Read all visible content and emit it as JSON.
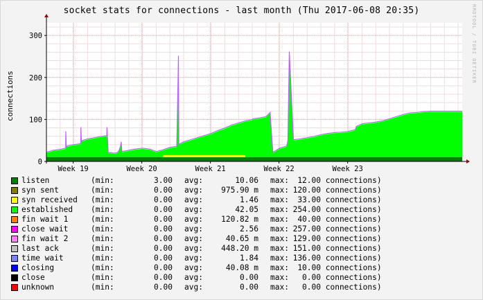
{
  "chart_data": {
    "type": "area",
    "title": "socket stats for connections - last month (Thu 2017-06-08 20:35)",
    "ylabel": "connections",
    "ylim": [
      0,
      330
    ],
    "yticks": [
      0,
      100,
      200,
      300
    ],
    "xticks": [
      "Week 19",
      "Week 20",
      "Week 21",
      "Week 22",
      "Week 23"
    ],
    "watermark": "RRDTOOL / TOBI OETIKER",
    "x_unit": "days since start of window",
    "x_range": [
      0,
      30.3
    ],
    "xtick_days": [
      1.95,
      6.95,
      11.95,
      16.95,
      21.95
    ],
    "series_est": {
      "listen_x": [
        0,
        30.3
      ],
      "listen_y": [
        10,
        10
      ],
      "established_x": [
        0,
        0.5,
        1.0,
        1.4,
        1.41,
        1.45,
        1.5,
        1.9,
        2.4,
        2.5,
        2.51,
        2.55,
        2.6,
        3.0,
        3.5,
        4.0,
        4.4,
        4.41,
        4.5,
        5.0,
        5.2,
        5.3,
        5.4,
        5.45,
        5.5,
        6.0,
        6.5,
        7.0,
        7.5,
        8.0,
        8.5,
        9.0,
        9.5,
        9.6,
        9.62,
        9.65,
        9.7,
        10.0,
        10.5,
        11.0,
        11.5,
        12.0,
        12.5,
        13.0,
        13.5,
        14.0,
        14.5,
        15.0,
        15.05,
        15.5,
        16.0,
        16.3,
        16.5,
        16.7,
        17.0,
        17.5,
        17.55,
        17.6,
        17.7,
        18.0,
        18.5,
        19.0,
        19.5,
        20.0,
        20.5,
        21.0,
        21.5,
        22.0,
        22.5,
        22.55,
        22.6,
        22.8,
        23.0,
        23.5,
        24.0,
        24.5,
        25.0,
        25.5,
        26.0,
        26.5,
        27.0,
        27.5,
        28.0,
        28.5,
        29.0,
        29.5,
        30.0,
        30.3
      ],
      "established_y": [
        10,
        15,
        17,
        20,
        60,
        22,
        25,
        28,
        30,
        32,
        70,
        35,
        38,
        42,
        45,
        48,
        50,
        70,
        10,
        8,
        10,
        15,
        25,
        35,
        12,
        15,
        18,
        20,
        18,
        12,
        16,
        22,
        24,
        200,
        240,
        26,
        30,
        35,
        40,
        45,
        50,
        55,
        62,
        68,
        75,
        80,
        85,
        88,
        90,
        92,
        95,
        105,
        10,
        14,
        20,
        25,
        30,
        40,
        250,
        40,
        42,
        45,
        48,
        52,
        55,
        57,
        58,
        60,
        64,
        68,
        72,
        75,
        78,
        80,
        82,
        85,
        90,
        95,
        100,
        104,
        105,
        107,
        108,
        108,
        108,
        108,
        108,
        108
      ],
      "synrecv_x": [
        8.5,
        14.5
      ],
      "synrecv_y": [
        5,
        5
      ]
    },
    "legend": [
      {
        "name": "listen",
        "color": "#008000",
        "min": "3.00",
        "avg": "10.06",
        "max": "12.00"
      },
      {
        "name": "syn sent",
        "color": "#808000",
        "min": "0.00",
        "avg": "975.90 m",
        "max": "120.00"
      },
      {
        "name": "syn received",
        "color": "#ffff00",
        "min": "0.00",
        "avg": "1.46",
        "max": "33.00"
      },
      {
        "name": "established",
        "color": "#00ff00",
        "min": "0.00",
        "avg": "42.05",
        "max": "254.00"
      },
      {
        "name": "fin wait 1",
        "color": "#ff8000",
        "min": "0.00",
        "avg": "120.82 m",
        "max": "40.00"
      },
      {
        "name": "close wait",
        "color": "#ff00ff",
        "min": "0.00",
        "avg": "2.56",
        "max": "257.00"
      },
      {
        "name": "fin wait 2",
        "color": "#ff80ff",
        "min": "0.00",
        "avg": "40.65 m",
        "max": "129.00"
      },
      {
        "name": "last ack",
        "color": "#c0c0c0",
        "min": "0.00",
        "avg": "448.20 m",
        "max": "151.00"
      },
      {
        "name": "time wait",
        "color": "#8080ff",
        "min": "0.00",
        "avg": "1.84",
        "max": "136.00"
      },
      {
        "name": "closing",
        "color": "#0000ff",
        "min": "0.00",
        "avg": "40.08 m",
        "max": "10.00"
      },
      {
        "name": "close",
        "color": "#000000",
        "min": "0.00",
        "avg": "0.00",
        "max": "0.00"
      },
      {
        "name": "unknown",
        "color": "#ff0000",
        "min": "0.00",
        "avg": "0.00",
        "max": "0.00"
      }
    ]
  },
  "legend_labels": {
    "min_prefix": "(min:",
    "avg_prefix": "avg:",
    "max_prefix": "max:",
    "unit_suffix": "connections)"
  }
}
